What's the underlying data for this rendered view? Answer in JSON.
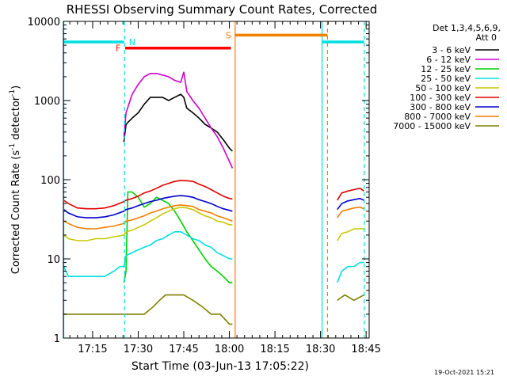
{
  "chart_data": {
    "type": "line",
    "title": "RHESSI Observing Summary Count Rates, Corrected",
    "xlabel": "Start Time (03-Jun-13 17:05:22)",
    "ylabel_main": "Corrected Count Rate (s",
    "ylabel_sup1": "-1",
    "ylabel_mid": " detector",
    "ylabel_sup2": "-1",
    "ylabel_end": ")",
    "yscale": "log",
    "ylim": [
      1,
      10000
    ],
    "xlim_min": [
      1025.37,
      1126.0
    ],
    "y_ticks": [
      {
        "v": 1,
        "label": "1"
      },
      {
        "v": 10,
        "label": "10"
      },
      {
        "v": 100,
        "label": "100"
      },
      {
        "v": 1000,
        "label": "1000"
      },
      {
        "v": 10000,
        "label": "10000"
      }
    ],
    "x_ticks": [
      {
        "t": 1035,
        "label": "17:15"
      },
      {
        "t": 1050,
        "label": "17:30"
      },
      {
        "t": 1065,
        "label": "17:45"
      },
      {
        "t": 1080,
        "label": "18:00"
      },
      {
        "t": 1095,
        "label": "18:15"
      },
      {
        "t": 1110,
        "label": "18:30"
      },
      {
        "t": 1125,
        "label": "18:45"
      }
    ],
    "legend_header": [
      "Det 1,3,4,5,6,9,",
      "Att 0"
    ],
    "series": [
      {
        "name": "3 - 6 keV",
        "color": "#000000",
        "points": [
          [
            1045.3,
            300
          ],
          [
            1046,
            500
          ],
          [
            1048,
            600
          ],
          [
            1050,
            700
          ],
          [
            1052,
            900
          ],
          [
            1054,
            1100
          ],
          [
            1056,
            1100
          ],
          [
            1058,
            1100
          ],
          [
            1060,
            1000
          ],
          [
            1062,
            1100
          ],
          [
            1064,
            1200
          ],
          [
            1065,
            1100
          ],
          [
            1066,
            800
          ],
          [
            1068,
            700
          ],
          [
            1070,
            600
          ],
          [
            1072,
            500
          ],
          [
            1074,
            450
          ],
          [
            1076,
            400
          ],
          [
            1078,
            320
          ],
          [
            1080,
            250
          ],
          [
            1081,
            230
          ]
        ]
      },
      {
        "name": "6 - 12 keV",
        "color": "#d000d0",
        "points": [
          [
            1045.3,
            350
          ],
          [
            1046,
            700
          ],
          [
            1048,
            1200
          ],
          [
            1050,
            1600
          ],
          [
            1052,
            2000
          ],
          [
            1054,
            2200
          ],
          [
            1056,
            2200
          ],
          [
            1058,
            2100
          ],
          [
            1060,
            2000
          ],
          [
            1062,
            1800
          ],
          [
            1064,
            1700
          ],
          [
            1065,
            2300
          ],
          [
            1066,
            1300
          ],
          [
            1068,
            1000
          ],
          [
            1070,
            800
          ],
          [
            1072,
            600
          ],
          [
            1074,
            450
          ],
          [
            1076,
            350
          ],
          [
            1078,
            250
          ],
          [
            1080,
            170
          ],
          [
            1081,
            140
          ]
        ]
      },
      {
        "name": "12 - 25 keV",
        "color": "#00d000",
        "points": [
          [
            1045.3,
            5
          ],
          [
            1046,
            7
          ],
          [
            1046.6,
            70
          ],
          [
            1048,
            70
          ],
          [
            1050,
            60
          ],
          [
            1052,
            45
          ],
          [
            1054,
            50
          ],
          [
            1056,
            60
          ],
          [
            1058,
            55
          ],
          [
            1060,
            50
          ],
          [
            1062,
            40
          ],
          [
            1064,
            30
          ],
          [
            1066,
            22
          ],
          [
            1068,
            17
          ],
          [
            1070,
            13
          ],
          [
            1072,
            10
          ],
          [
            1074,
            8
          ],
          [
            1076,
            7
          ],
          [
            1078,
            6
          ],
          [
            1080,
            5
          ],
          [
            1081,
            5
          ]
        ]
      },
      {
        "name": "25 - 50 keV",
        "color": "#00e0e0",
        "points": [
          [
            1025.5,
            8
          ],
          [
            1027,
            6
          ],
          [
            1030,
            6
          ],
          [
            1033,
            6
          ],
          [
            1036,
            6
          ],
          [
            1039,
            6
          ],
          [
            1042,
            7
          ],
          [
            1044,
            8
          ],
          [
            1045.3,
            8
          ],
          [
            1046,
            11
          ],
          [
            1048,
            12
          ],
          [
            1050,
            13
          ],
          [
            1052,
            14
          ],
          [
            1054,
            15
          ],
          [
            1056,
            17
          ],
          [
            1058,
            18
          ],
          [
            1060,
            20
          ],
          [
            1062,
            22
          ],
          [
            1064,
            22
          ],
          [
            1066,
            20
          ],
          [
            1068,
            18
          ],
          [
            1070,
            17
          ],
          [
            1072,
            15
          ],
          [
            1074,
            14
          ],
          [
            1076,
            12
          ],
          [
            1078,
            11
          ],
          [
            1080,
            10
          ],
          [
            1081,
            10
          ],
          [
            1115.5,
            5
          ],
          [
            1117,
            7
          ],
          [
            1119,
            8
          ],
          [
            1121,
            8
          ],
          [
            1123,
            9
          ],
          [
            1124.3,
            9
          ]
        ]
      },
      {
        "name": "50 - 100 keV",
        "color": "#c8c800",
        "points": [
          [
            1025.5,
            20
          ],
          [
            1027,
            18
          ],
          [
            1030,
            17
          ],
          [
            1033,
            17
          ],
          [
            1036,
            18
          ],
          [
            1039,
            18
          ],
          [
            1042,
            19
          ],
          [
            1045.3,
            20
          ],
          [
            1046,
            22
          ],
          [
            1048,
            23
          ],
          [
            1050,
            25
          ],
          [
            1052,
            27
          ],
          [
            1054,
            30
          ],
          [
            1056,
            33
          ],
          [
            1058,
            37
          ],
          [
            1060,
            40
          ],
          [
            1062,
            43
          ],
          [
            1064,
            45
          ],
          [
            1066,
            44
          ],
          [
            1068,
            42
          ],
          [
            1070,
            38
          ],
          [
            1072,
            35
          ],
          [
            1074,
            33
          ],
          [
            1076,
            30
          ],
          [
            1078,
            29
          ],
          [
            1080,
            27
          ],
          [
            1081,
            27
          ],
          [
            1115.5,
            17
          ],
          [
            1117,
            21
          ],
          [
            1119,
            22
          ],
          [
            1121,
            24
          ],
          [
            1123,
            24
          ],
          [
            1124.3,
            24
          ]
        ]
      },
      {
        "name": "100 - 300 keV",
        "color": "#e00000",
        "points": [
          [
            1025.5,
            55
          ],
          [
            1027,
            50
          ],
          [
            1030,
            44
          ],
          [
            1033,
            43
          ],
          [
            1036,
            43
          ],
          [
            1039,
            44
          ],
          [
            1042,
            47
          ],
          [
            1045.3,
            53
          ],
          [
            1046,
            55
          ],
          [
            1048,
            58
          ],
          [
            1050,
            62
          ],
          [
            1052,
            68
          ],
          [
            1054,
            72
          ],
          [
            1056,
            78
          ],
          [
            1058,
            85
          ],
          [
            1060,
            90
          ],
          [
            1062,
            95
          ],
          [
            1064,
            98
          ],
          [
            1066,
            97
          ],
          [
            1068,
            95
          ],
          [
            1070,
            88
          ],
          [
            1072,
            82
          ],
          [
            1074,
            75
          ],
          [
            1076,
            68
          ],
          [
            1078,
            62
          ],
          [
            1080,
            58
          ],
          [
            1081,
            57
          ],
          [
            1115.5,
            55
          ],
          [
            1117,
            68
          ],
          [
            1119,
            72
          ],
          [
            1121,
            75
          ],
          [
            1123,
            78
          ],
          [
            1124.3,
            72
          ]
        ]
      },
      {
        "name": "300 - 800 keV",
        "color": "#0000d0",
        "points": [
          [
            1025.5,
            42
          ],
          [
            1027,
            38
          ],
          [
            1030,
            34
          ],
          [
            1033,
            33
          ],
          [
            1036,
            33
          ],
          [
            1039,
            34
          ],
          [
            1042,
            36
          ],
          [
            1045.3,
            40
          ],
          [
            1046,
            42
          ],
          [
            1048,
            44
          ],
          [
            1050,
            47
          ],
          [
            1052,
            50
          ],
          [
            1054,
            53
          ],
          [
            1056,
            55
          ],
          [
            1058,
            58
          ],
          [
            1060,
            60
          ],
          [
            1062,
            62
          ],
          [
            1064,
            63
          ],
          [
            1066,
            62
          ],
          [
            1068,
            60
          ],
          [
            1070,
            56
          ],
          [
            1072,
            53
          ],
          [
            1074,
            50
          ],
          [
            1076,
            46
          ],
          [
            1078,
            43
          ],
          [
            1080,
            41
          ],
          [
            1081,
            40
          ],
          [
            1115.5,
            42
          ],
          [
            1117,
            50
          ],
          [
            1119,
            54
          ],
          [
            1121,
            56
          ],
          [
            1123,
            58
          ],
          [
            1124.3,
            55
          ]
        ]
      },
      {
        "name": "800 - 7000 keV",
        "color": "#f08000",
        "points": [
          [
            1025.5,
            30
          ],
          [
            1027,
            28
          ],
          [
            1030,
            25
          ],
          [
            1033,
            24
          ],
          [
            1036,
            24
          ],
          [
            1039,
            25
          ],
          [
            1042,
            26
          ],
          [
            1045.3,
            28
          ],
          [
            1046,
            30
          ],
          [
            1048,
            31
          ],
          [
            1050,
            33
          ],
          [
            1052,
            35
          ],
          [
            1054,
            38
          ],
          [
            1056,
            40
          ],
          [
            1058,
            43
          ],
          [
            1060,
            45
          ],
          [
            1062,
            47
          ],
          [
            1064,
            48
          ],
          [
            1066,
            47
          ],
          [
            1068,
            46
          ],
          [
            1070,
            42
          ],
          [
            1072,
            40
          ],
          [
            1074,
            38
          ],
          [
            1076,
            35
          ],
          [
            1078,
            33
          ],
          [
            1080,
            31
          ],
          [
            1081,
            30
          ],
          [
            1115.5,
            33
          ],
          [
            1117,
            40
          ],
          [
            1119,
            42
          ],
          [
            1121,
            44
          ],
          [
            1123,
            45
          ],
          [
            1124.3,
            43
          ]
        ]
      },
      {
        "name": "7000 - 15000 keV",
        "color": "#808000",
        "points": [
          [
            1025.5,
            2
          ],
          [
            1028,
            2
          ],
          [
            1031,
            2
          ],
          [
            1034,
            2
          ],
          [
            1037,
            2
          ],
          [
            1040,
            2
          ],
          [
            1043,
            2
          ],
          [
            1045.3,
            2
          ],
          [
            1046,
            2
          ],
          [
            1049,
            2
          ],
          [
            1052,
            2
          ],
          [
            1055,
            2.5
          ],
          [
            1057,
            3
          ],
          [
            1059,
            3.5
          ],
          [
            1062,
            3.5
          ],
          [
            1065,
            3.5
          ],
          [
            1068,
            3
          ],
          [
            1071,
            2.5
          ],
          [
            1074,
            2
          ],
          [
            1077,
            2
          ],
          [
            1080,
            1.5
          ],
          [
            1081,
            1.5
          ],
          [
            1115.5,
            3
          ],
          [
            1118,
            3.5
          ],
          [
            1121,
            3
          ],
          [
            1124.3,
            3.5
          ]
        ]
      }
    ],
    "annotations": {
      "N": {
        "label": "N",
        "color": "#00e0e0",
        "level": 5500,
        "segments": [
          [
            1025.4,
            1045.3
          ],
          [
            1110.5,
            1124.3
          ]
        ]
      },
      "F": {
        "label": "F",
        "color": "#ff0000",
        "level": 4600,
        "segments": [
          [
            1045.7,
            1080.5
          ]
        ]
      },
      "S": {
        "label": "S",
        "color": "#f08000",
        "level": 6700,
        "segments": [
          [
            1081.9,
            1112.3
          ]
        ]
      },
      "vlines": [
        {
          "t": 1025.5,
          "color": "#00e0e0",
          "dash": false
        },
        {
          "t": 1045.5,
          "color": "#00e0e0",
          "dash": true
        },
        {
          "t": 1081.9,
          "color": "#f08000",
          "dash": false
        },
        {
          "t": 1110.5,
          "color": "#00e0e0",
          "dash": false
        },
        {
          "t": 1112.3,
          "color": "#f08000",
          "dash": true
        },
        {
          "t": 1124.4,
          "color": "#00e0e0",
          "dash": true
        }
      ]
    }
  },
  "footer": {
    "date": "19-Oct-2021 15:21"
  }
}
